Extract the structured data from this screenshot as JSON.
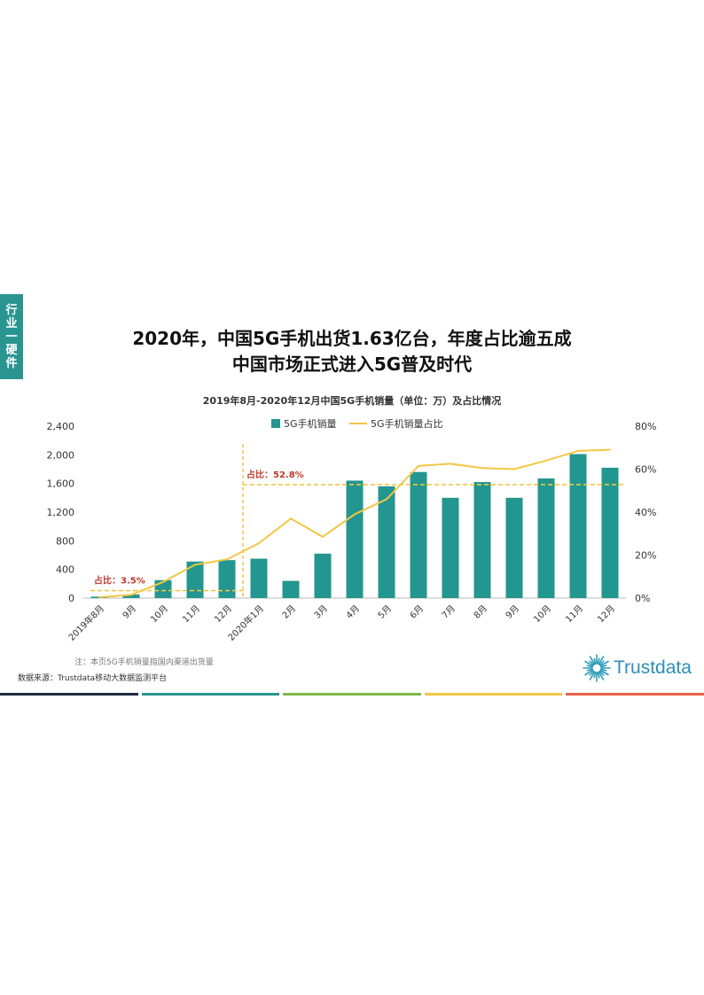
{
  "side_tab": [
    "行",
    "业",
    "一",
    "硬",
    "件"
  ],
  "title_line1": "2020年，中国5G手机出货1.63亿台，年度占比逾五成",
  "title_line2": "中国市场正式进入5G普及时代",
  "note": "注：本页5G手机销量指国内渠道出货量",
  "source": "数据来源：Trustdata移动大数据监测平台",
  "logo_text": "Trustdata",
  "stripe_colors": [
    "#1d2a3f",
    "#2a9590",
    "#7fb84a",
    "#f2c744",
    "#e8604c"
  ],
  "chart_data": {
    "type": "bar+line",
    "title": "2019年8月-2020年12月中国5G手机销量（单位：万）及占比情况",
    "categories": [
      "2019年8月",
      "9月",
      "10月",
      "11月",
      "12月",
      "2020年1月",
      "2月",
      "3月",
      "4月",
      "5月",
      "6月",
      "7月",
      "8月",
      "9月",
      "10月",
      "11月",
      "12月"
    ],
    "series": [
      {
        "name": "5G手机销量",
        "type": "bar",
        "axis": "left",
        "color": "#22968f",
        "values": [
          20,
          50,
          250,
          510,
          530,
          550,
          240,
          620,
          1640,
          1560,
          1760,
          1400,
          1620,
          1400,
          1670,
          2010,
          1820
        ]
      },
      {
        "name": "5G手机销量占比",
        "type": "line",
        "axis": "right",
        "color": "#f2c744",
        "values": [
          0.4,
          1.5,
          7.5,
          15.5,
          18.0,
          25.5,
          37.0,
          28.5,
          39.0,
          46.0,
          61.5,
          62.5,
          60.5,
          60.0,
          64.0,
          68.5,
          69.0
        ]
      }
    ],
    "y_left": {
      "min": 0,
      "max": 2400,
      "ticks": [
        "0",
        "400",
        "800",
        "1,200",
        "1,600",
        "2,000",
        "2,400"
      ]
    },
    "y_right": {
      "min": 0,
      "max": 80,
      "ticks": [
        "0%",
        "20%",
        "40%",
        "60%",
        "80%"
      ]
    },
    "reference_lines": [
      {
        "value": 3.5,
        "axis": "right",
        "from": 0,
        "to": 4,
        "label": "占比：3.5%"
      },
      {
        "value": 52.8,
        "axis": "right",
        "from": 5,
        "to": 16,
        "label": "占比：52.8%"
      }
    ],
    "divider_before": 5,
    "legend_position": "top"
  }
}
